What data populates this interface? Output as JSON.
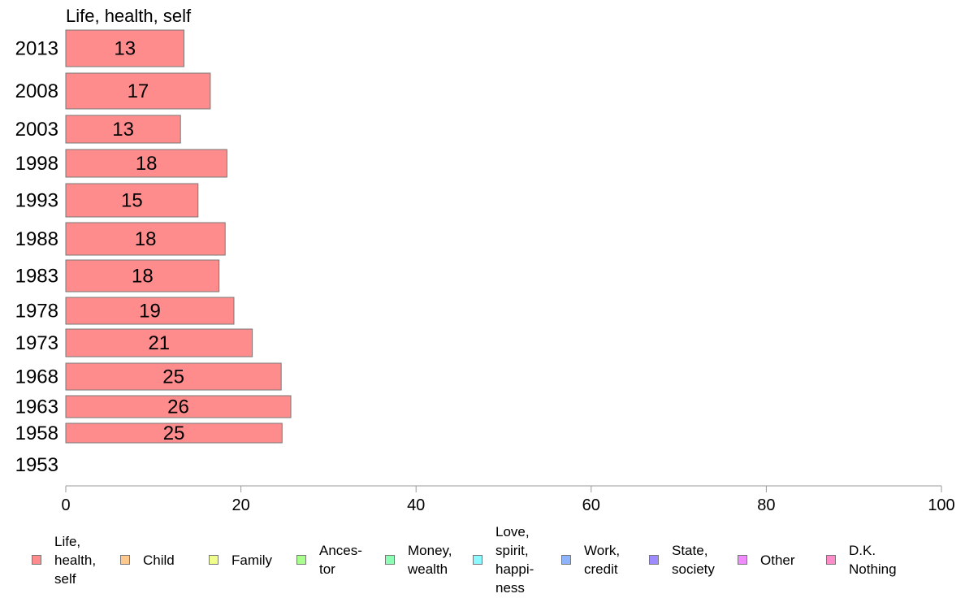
{
  "chart_data": {
    "type": "bar",
    "orientation": "horizontal",
    "title": "Life, health, self",
    "categories": [
      "2013",
      "2008",
      "2003",
      "1998",
      "1993",
      "1988",
      "1983",
      "1978",
      "1973",
      "1968",
      "1963",
      "1958",
      "1953"
    ],
    "series": [
      {
        "name": "Life, health, self",
        "color": "#ff8c8c",
        "values": [
          13.5,
          16.5,
          13.1,
          18.4,
          15.1,
          18.2,
          17.5,
          19.2,
          21.3,
          24.6,
          25.7,
          24.7,
          null
        ],
        "labels": [
          "13",
          "17",
          "13",
          "18",
          "15",
          "18",
          "18",
          "19",
          "21",
          "25",
          "26",
          "25",
          ""
        ]
      }
    ],
    "xlim": [
      0,
      100
    ],
    "xticks": [
      "0",
      "20",
      "40",
      "60",
      "80",
      "100"
    ],
    "grid": false,
    "legend_position": "bottom"
  },
  "legend": [
    {
      "label": "Life,\nhealth,\nself",
      "color": "#ff8c8c"
    },
    {
      "label": "Child",
      "color": "#ffc88c"
    },
    {
      "label": "Family",
      "color": "#f0ff8c"
    },
    {
      "label": "Ances-\ntor",
      "color": "#a8ff8c"
    },
    {
      "label": "Money,\nwealth",
      "color": "#8cffb4"
    },
    {
      "label": "Love,\nspirit,\nhappi-\nness",
      "color": "#8cf8ff"
    },
    {
      "label": "Work,\ncredit",
      "color": "#8cb4ff"
    },
    {
      "label": "State,\nsociety",
      "color": "#9c8cff"
    },
    {
      "label": "Other",
      "color": "#f08cff"
    },
    {
      "label": "D.K.\nNothing",
      "color": "#ff8cc8"
    }
  ]
}
